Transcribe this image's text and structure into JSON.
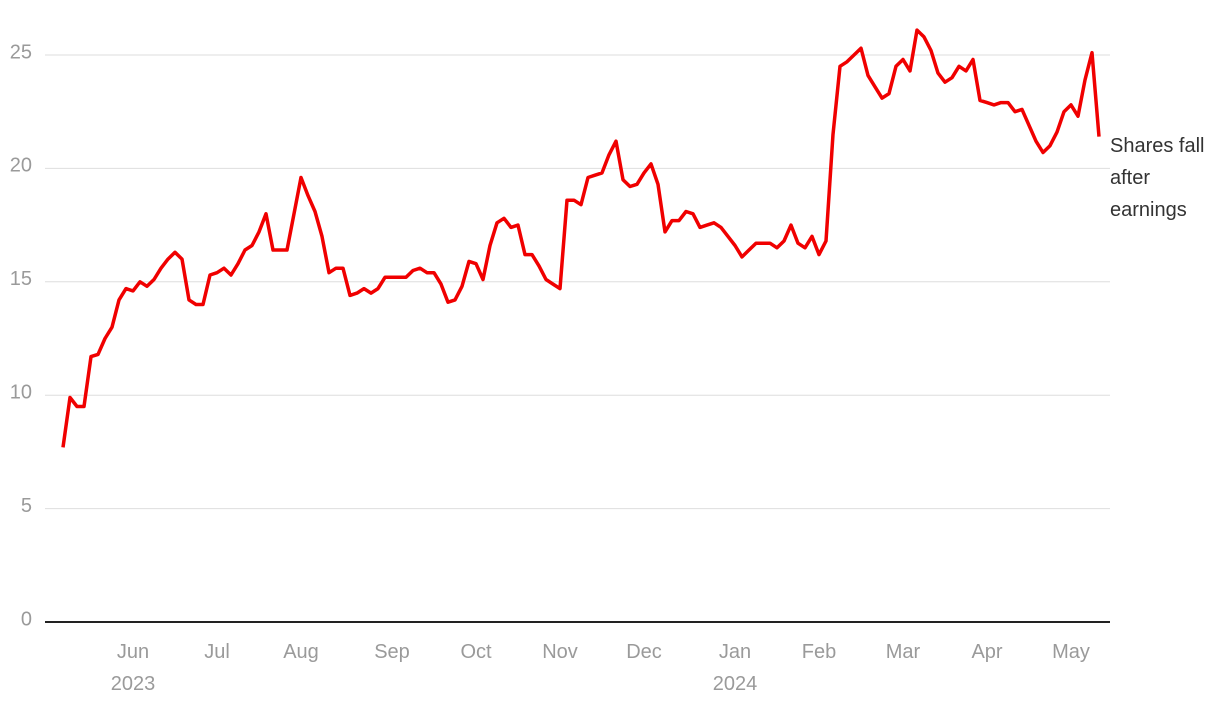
{
  "chart_data": {
    "type": "line",
    "annotation": "Shares fall after earnings",
    "categories": [
      null,
      null,
      null,
      null,
      null,
      null,
      null,
      null,
      null,
      null,
      "Jun",
      null,
      null,
      null,
      null,
      null,
      null,
      null,
      null,
      null,
      null,
      null,
      "Jul",
      null,
      null,
      null,
      null,
      null,
      null,
      null,
      null,
      null,
      null,
      null,
      "Aug",
      null,
      null,
      null,
      null,
      null,
      null,
      null,
      null,
      null,
      null,
      null,
      null,
      "Sep",
      null,
      null,
      null,
      null,
      null,
      null,
      null,
      null,
      null,
      null,
      null,
      "Oct",
      null,
      null,
      null,
      null,
      null,
      null,
      null,
      null,
      null,
      null,
      null,
      "Nov",
      null,
      null,
      null,
      null,
      null,
      null,
      null,
      null,
      null,
      null,
      null,
      "Dec",
      null,
      null,
      null,
      null,
      null,
      null,
      null,
      null,
      null,
      null,
      null,
      null,
      "Jan",
      null,
      null,
      null,
      null,
      null,
      null,
      null,
      null,
      null,
      null,
      null,
      "Feb",
      null,
      null,
      null,
      null,
      null,
      null,
      null,
      null,
      null,
      null,
      null,
      "Mar",
      null,
      null,
      null,
      null,
      null,
      null,
      null,
      null,
      null,
      null,
      null,
      "Apr",
      null,
      null,
      null,
      null,
      null,
      null,
      null,
      null,
      null,
      null,
      null,
      "May",
      null,
      null,
      null,
      null
    ],
    "years": [
      null,
      null,
      null,
      null,
      null,
      null,
      null,
      null,
      null,
      null,
      "2023",
      null,
      null,
      null,
      null,
      null,
      null,
      null,
      null,
      null,
      null,
      null,
      null,
      null,
      null,
      null,
      null,
      null,
      null,
      null,
      null,
      null,
      null,
      null,
      null,
      null,
      null,
      null,
      null,
      null,
      null,
      null,
      null,
      null,
      null,
      null,
      null,
      null,
      null,
      null,
      null,
      null,
      null,
      null,
      null,
      null,
      null,
      null,
      null,
      null,
      null,
      null,
      null,
      null,
      null,
      null,
      null,
      null,
      null,
      null,
      null,
      null,
      null,
      null,
      null,
      null,
      null,
      null,
      null,
      null,
      null,
      null,
      null,
      null,
      null,
      null,
      null,
      null,
      null,
      null,
      null,
      null,
      null,
      null,
      null,
      null,
      "2024",
      null,
      null,
      null,
      null,
      null,
      null,
      null,
      null,
      null,
      null,
      null,
      null,
      null,
      null,
      null,
      null,
      null,
      null,
      null,
      null,
      null,
      null,
      null,
      null,
      null,
      null,
      null,
      null,
      null,
      null,
      null,
      null,
      null,
      null,
      null,
      null,
      null,
      null,
      null,
      null,
      null,
      null,
      null,
      null,
      null,
      null,
      null,
      null,
      null,
      null,
      null,
      null
    ],
    "series": [
      {
        "name": "Shares",
        "color": "#f00000",
        "values": [
          7.7,
          9.9,
          9.5,
          9.5,
          11.7,
          11.8,
          12.5,
          13.0,
          14.2,
          14.7,
          14.6,
          15.0,
          14.8,
          15.1,
          15.6,
          16.0,
          16.3,
          16.0,
          14.2,
          14.0,
          14.0,
          15.3,
          15.4,
          15.6,
          15.3,
          15.8,
          16.4,
          16.6,
          17.2,
          18.0,
          16.4,
          16.4,
          16.4,
          18.0,
          19.6,
          18.8,
          18.1,
          17.0,
          15.4,
          15.6,
          15.6,
          14.4,
          14.5,
          14.7,
          14.5,
          14.7,
          15.2,
          15.2,
          15.2,
          15.2,
          15.5,
          15.6,
          15.4,
          15.4,
          14.9,
          14.1,
          14.2,
          14.8,
          15.9,
          15.8,
          15.1,
          16.6,
          17.6,
          17.8,
          17.4,
          17.5,
          16.2,
          16.2,
          15.7,
          15.1,
          14.9,
          14.7,
          18.6,
          18.6,
          18.4,
          19.6,
          19.7,
          19.8,
          20.6,
          21.2,
          19.5,
          19.2,
          19.3,
          19.8,
          20.2,
          19.3,
          17.2,
          17.7,
          17.7,
          18.1,
          18.0,
          17.4,
          17.5,
          17.6,
          17.4,
          17.0,
          16.6,
          16.1,
          16.4,
          16.7,
          16.7,
          16.7,
          16.5,
          16.8,
          17.5,
          16.7,
          16.5,
          17.0,
          16.2,
          16.8,
          21.5,
          24.5,
          24.7,
          25.0,
          25.3,
          24.1,
          23.6,
          23.1,
          23.3,
          24.5,
          24.8,
          24.3,
          26.1,
          25.8,
          25.2,
          24.2,
          23.8,
          24.0,
          24.5,
          24.3,
          24.8,
          23.0,
          22.9,
          22.8,
          22.9,
          22.9,
          22.5,
          22.6,
          21.9,
          21.2,
          20.7,
          21.0,
          21.6,
          22.5,
          22.8,
          22.3,
          23.9,
          25.1,
          21.4
        ]
      }
    ],
    "ylim": [
      0,
      25
    ],
    "yticks": [
      0,
      5,
      10,
      15,
      20,
      25
    ],
    "grid": true
  }
}
